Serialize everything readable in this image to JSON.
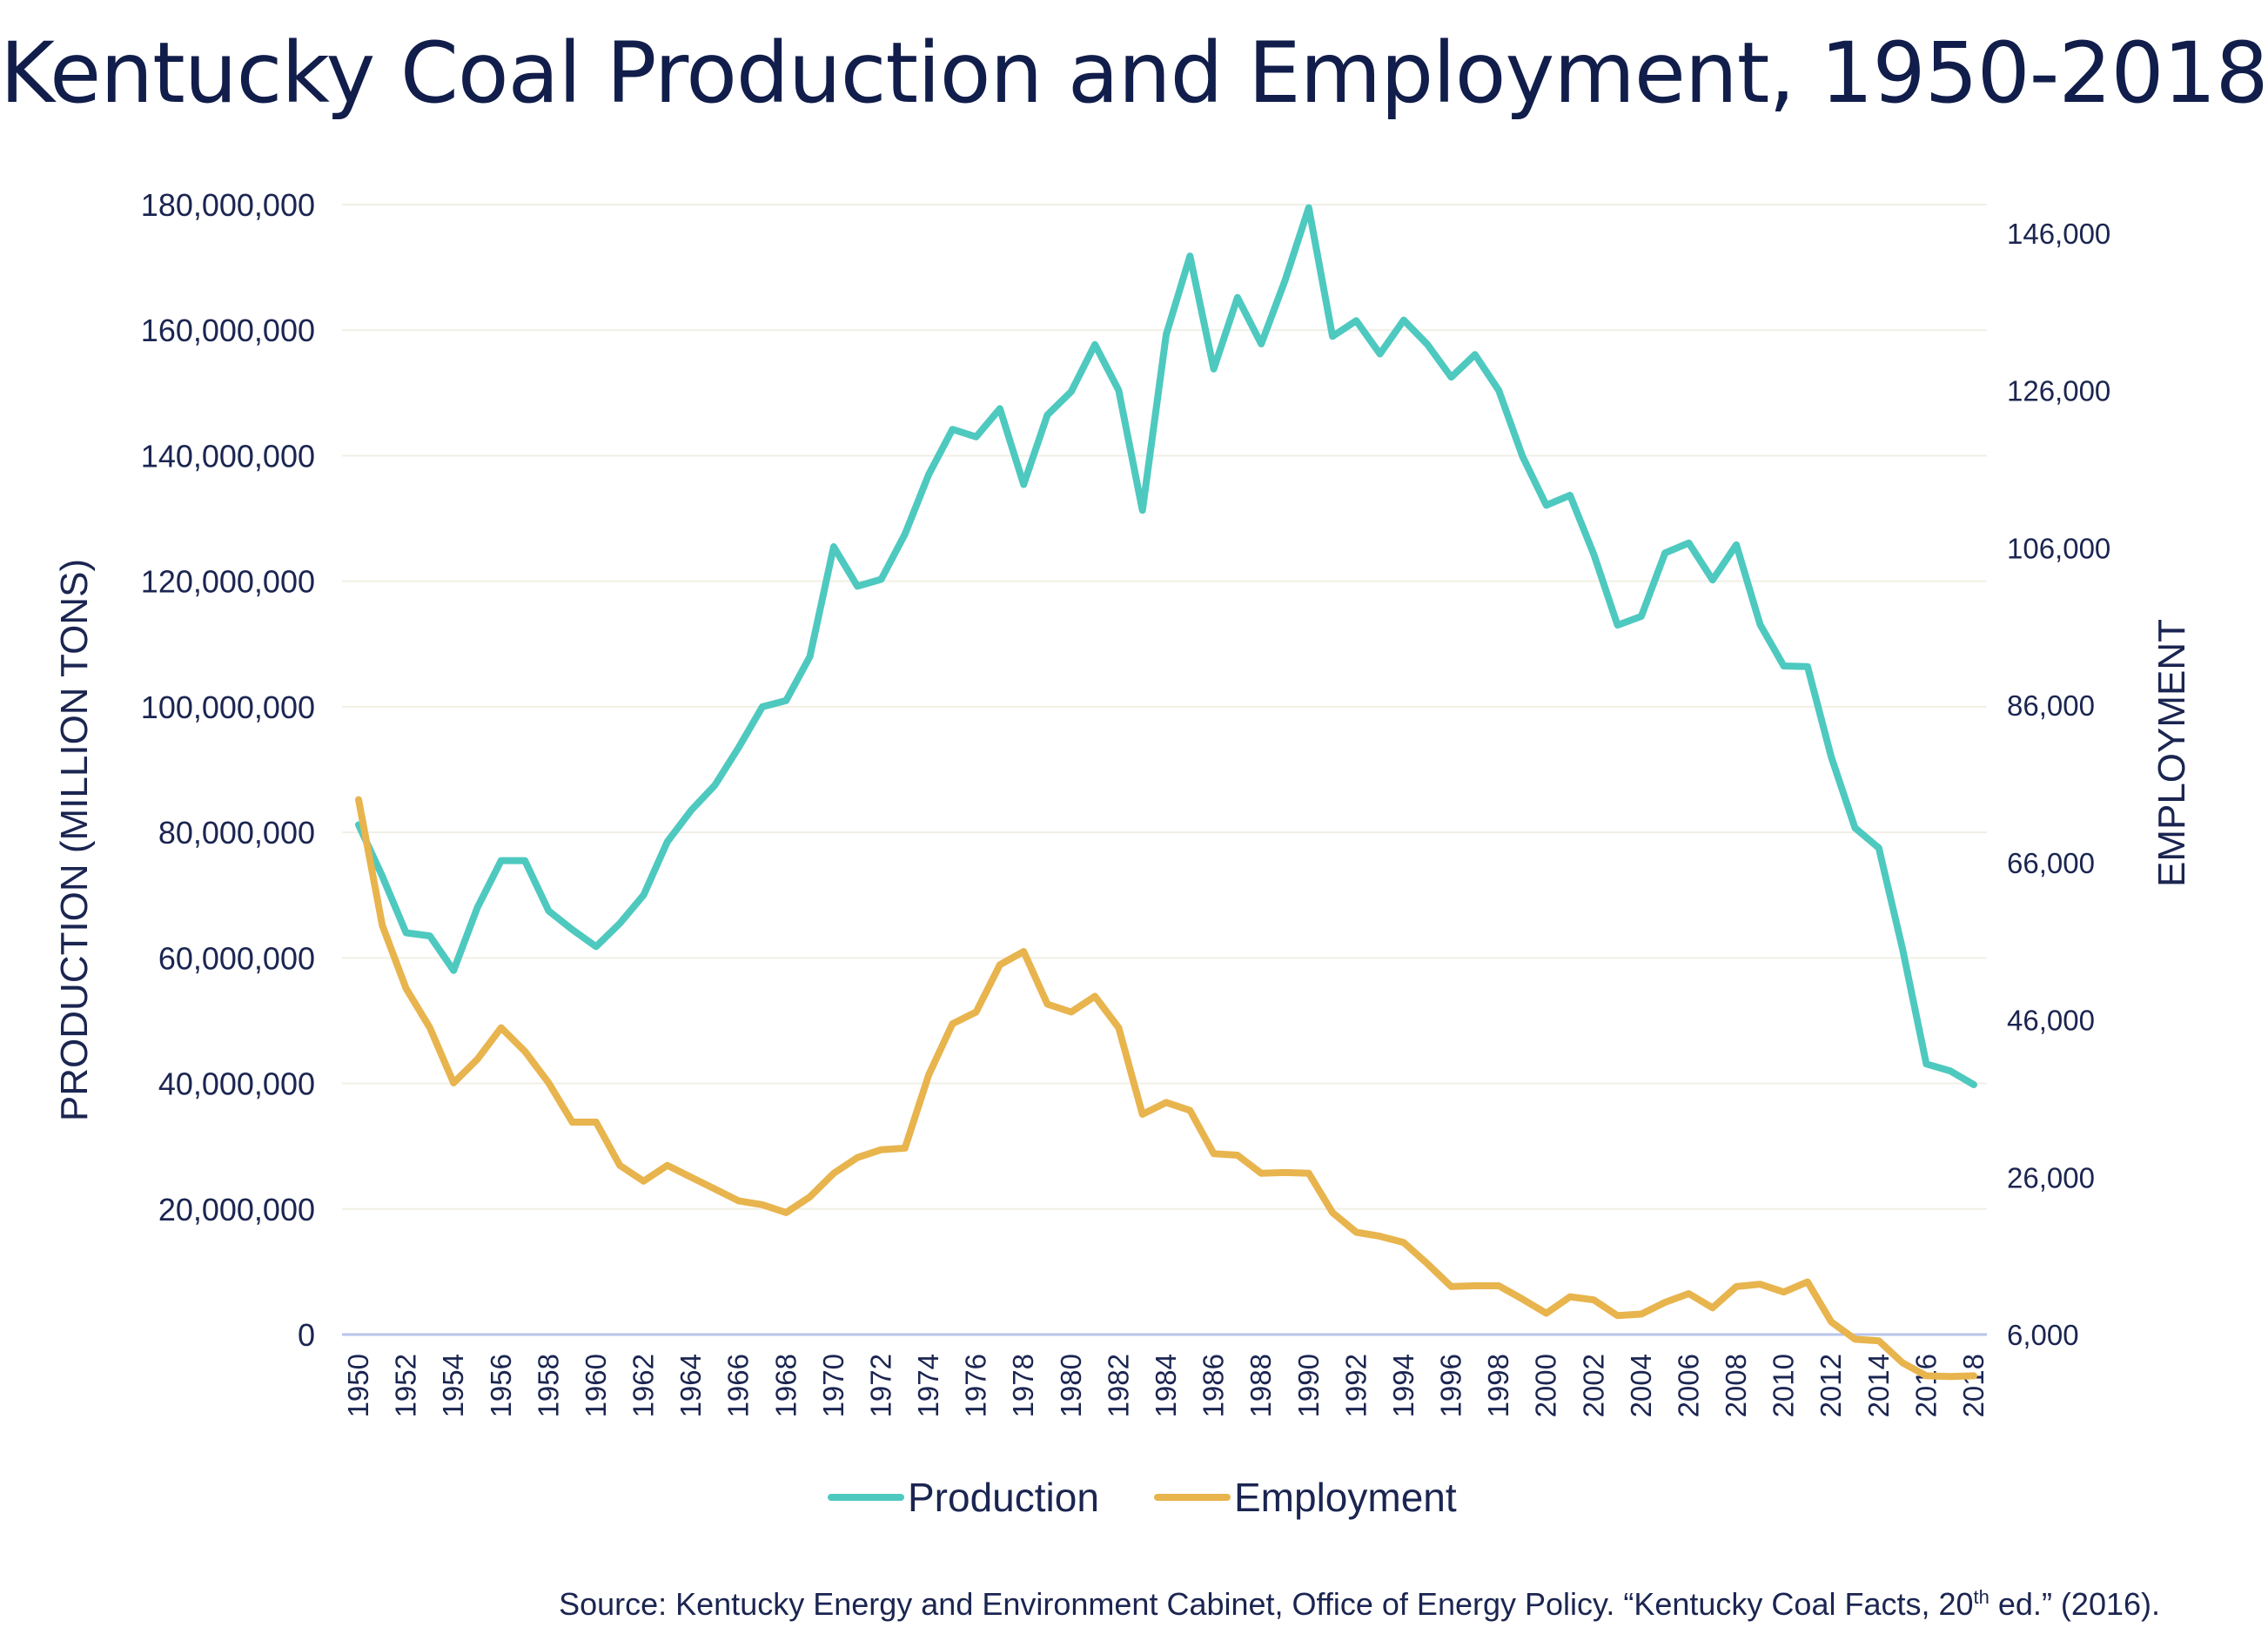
{
  "chart_data": {
    "type": "line",
    "title": "Kentucky Coal Production and Employment, 1950-2018",
    "x": [
      1950,
      1951,
      1952,
      1953,
      1954,
      1955,
      1956,
      1957,
      1958,
      1959,
      1960,
      1961,
      1962,
      1963,
      1964,
      1965,
      1966,
      1967,
      1968,
      1969,
      1970,
      1971,
      1972,
      1973,
      1974,
      1975,
      1976,
      1977,
      1978,
      1979,
      1980,
      1981,
      1982,
      1983,
      1984,
      1985,
      1986,
      1987,
      1988,
      1989,
      1990,
      1991,
      1992,
      1993,
      1994,
      1995,
      1996,
      1997,
      1998,
      1999,
      2000,
      2001,
      2002,
      2003,
      2004,
      2005,
      2006,
      2007,
      2008,
      2009,
      2010,
      2011,
      2012,
      2013,
      2014,
      2015,
      2016,
      2017,
      2018
    ],
    "x_tick_labels": [
      "1950",
      "1952",
      "1954",
      "1956",
      "1958",
      "1960",
      "1962",
      "1964",
      "1966",
      "1968",
      "1970",
      "1972",
      "1974",
      "1976",
      "1978",
      "1980",
      "1982",
      "1984",
      "1986",
      "1988",
      "1990",
      "1992",
      "1994",
      "1996",
      "1998",
      "2000",
      "2002",
      "2004",
      "2006",
      "2008",
      "2010",
      "2012",
      "2014",
      "2016",
      "2018"
    ],
    "y_left": {
      "label": "PRODUCTION (MILLION TONS)",
      "lim": [
        0,
        180000000
      ],
      "tick_labels": [
        "0",
        "20,000,000",
        "40,000,000",
        "60,000,000",
        "80,000,000",
        "100,000,000",
        "120,000,000",
        "140,000,000",
        "160,000,000",
        "180,000,000"
      ]
    },
    "y_right": {
      "label": "EMPLOYMENT",
      "lim": [
        6000,
        146000
      ],
      "tick_labels": [
        "6,000",
        "26,000",
        "46,000",
        "66,000",
        "86,000",
        "106,000",
        "126,000",
        "146,000"
      ]
    },
    "series": [
      {
        "name": "Production",
        "axis": "left",
        "color": "#4ec9bf",
        "values": [
          81200000,
          73000000,
          64000000,
          63500000,
          58000000,
          68000000,
          75500000,
          75500000,
          67500000,
          64500000,
          61800000,
          65500000,
          70000000,
          78500000,
          83500000,
          87500000,
          93500000,
          100000000,
          101000000,
          108000000,
          125500000,
          119200000,
          120300000,
          127500000,
          137000000,
          144200000,
          143000000,
          147500000,
          135400000,
          146500000,
          150200000,
          157700000,
          150400000,
          131300000,
          159300000,
          171800000,
          153800000,
          165200000,
          157800000,
          167900000,
          179500000,
          159000000,
          161500000,
          156200000,
          161600000,
          157700000,
          152500000,
          156100000,
          150400000,
          139900000,
          132100000,
          133700000,
          124300000,
          113000000,
          114400000,
          124500000,
          126100000,
          120200000,
          125800000,
          113100000,
          106500000,
          106400000,
          92000000,
          80700000,
          77500000,
          61400000,
          43100000,
          42000000,
          39800000
        ]
      },
      {
        "name": "Employment",
        "axis": "right",
        "color": "#e8b44d",
        "values": [
          74000,
          58000,
          50000,
          45000,
          38000,
          41000,
          45000,
          42000,
          38000,
          33000,
          33000,
          27500,
          25500,
          27500,
          26000,
          24500,
          23000,
          22500,
          21500,
          23500,
          26500,
          28500,
          29500,
          29700,
          39000,
          45500,
          47000,
          53000,
          54700,
          48000,
          47000,
          49000,
          45000,
          34000,
          35500,
          34500,
          29000,
          28800,
          26500,
          26600,
          26500,
          21500,
          19000,
          18500,
          17700,
          15000,
          12100,
          12200,
          12200,
          10500,
          8700,
          10800,
          10400,
          8400,
          8600,
          10100,
          11200,
          9400,
          12100,
          12400,
          11400,
          12700,
          7600,
          5400,
          5200,
          2400,
          750,
          660,
          750
        ]
      }
    ],
    "legend": {
      "placement": "bottom-center",
      "entries": [
        "Production",
        "Employment"
      ]
    },
    "grid": true,
    "source_note": {
      "prefix": "Source: Kentucky Energy and Environment Cabinet, Office of Energy Policy. “Kentucky Coal Facts, 20",
      "superscript": "th",
      "suffix": " ed.” (2016)."
    }
  }
}
